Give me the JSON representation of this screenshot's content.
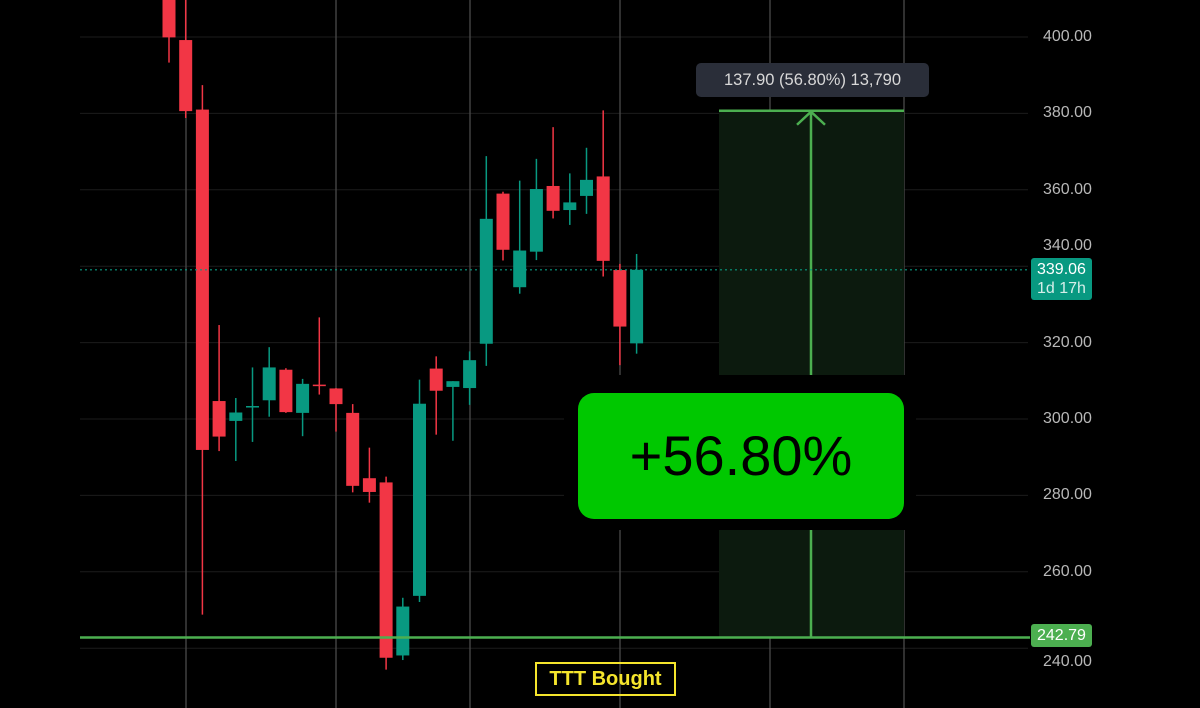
{
  "chart_data": {
    "type": "candlestick",
    "title": "",
    "xlabel": "",
    "ylabel": "",
    "ylim": [
      238,
      410
    ],
    "grid": true,
    "y_ticks": [
      "400.00",
      "380.00",
      "360.00",
      "340.00",
      "320.00",
      "300.00",
      "280.00",
      "260.00",
      "240.00"
    ],
    "y_tick_values": [
      400,
      380,
      360,
      340,
      320,
      300,
      280,
      260,
      240
    ],
    "up_color": "#089981",
    "down_color": "#f23645",
    "candles": [
      {
        "o": 412,
        "h": 418,
        "l": 393.3,
        "c": 399.9
      },
      {
        "o": 399.2,
        "h": 410,
        "l": 378.8,
        "c": 380.6
      },
      {
        "o": 381,
        "h": 387.4,
        "l": 248.8,
        "c": 291.9
      },
      {
        "o": 304.7,
        "h": 324.6,
        "l": 291.6,
        "c": 295.4
      },
      {
        "o": 299.5,
        "h": 305.5,
        "l": 289,
        "c": 301.7
      },
      {
        "o": 303,
        "h": 313.5,
        "l": 294,
        "c": 303.4
      },
      {
        "o": 304.9,
        "h": 318.8,
        "l": 300.6,
        "c": 313.5
      },
      {
        "o": 312.9,
        "h": 313.3,
        "l": 301.6,
        "c": 301.8
      },
      {
        "o": 301.6,
        "h": 310.5,
        "l": 295.5,
        "c": 309.2
      },
      {
        "o": 309,
        "h": 326.6,
        "l": 306.4,
        "c": 308.6
      },
      {
        "o": 308,
        "h": 308.1,
        "l": 296.7,
        "c": 303.9
      },
      {
        "o": 301.6,
        "h": 303.9,
        "l": 280.8,
        "c": 282.5
      },
      {
        "o": 284.5,
        "h": 292.5,
        "l": 278.1,
        "c": 280.9
      },
      {
        "o": 283.4,
        "h": 284.9,
        "l": 234.4,
        "c": 237.5
      },
      {
        "o": 238.1,
        "h": 253.2,
        "l": 236.9,
        "c": 250.9
      },
      {
        "o": 253.7,
        "h": 310.3,
        "l": 252.1,
        "c": 304
      },
      {
        "o": 313.2,
        "h": 316.4,
        "l": 295.9,
        "c": 307.4
      },
      {
        "o": 308.4,
        "h": 309.9,
        "l": 294.3,
        "c": 309.9
      },
      {
        "o": 308.1,
        "h": 317.7,
        "l": 303.7,
        "c": 315.4
      },
      {
        "o": 319.7,
        "h": 368.8,
        "l": 313.9,
        "c": 352.4
      },
      {
        "o": 359,
        "h": 359.5,
        "l": 341.5,
        "c": 344.3
      },
      {
        "o": 334.5,
        "h": 362.4,
        "l": 332.8,
        "c": 344.1
      },
      {
        "o": 343.8,
        "h": 368.1,
        "l": 341.6,
        "c": 360.2
      },
      {
        "o": 361,
        "h": 376.4,
        "l": 352.5,
        "c": 354.5
      },
      {
        "o": 354.7,
        "h": 364.3,
        "l": 350.8,
        "c": 356.7
      },
      {
        "o": 358.4,
        "h": 371,
        "l": 353.7,
        "c": 362.6
      },
      {
        "o": 363.5,
        "h": 380.8,
        "l": 337.3,
        "c": 341.4
      },
      {
        "o": 339,
        "h": 340.6,
        "l": 314.1,
        "c": 324.2
      },
      {
        "o": 319.8,
        "h": 343.2,
        "l": 317.1,
        "c": 339.06
      }
    ],
    "current_price": {
      "value": 339.06,
      "label": "339.06",
      "countdown": "1d 17h",
      "color": "#089981"
    },
    "entry_line": {
      "value": 242.79,
      "label": "242.79",
      "color": "#4caf50"
    },
    "measure": {
      "from": 242.79,
      "to": 380.69,
      "tooltip": "137.90 (56.80%) 13,790",
      "percent_label": "+56.80%",
      "fill_color": "#0c1a0e",
      "line_color": "#4caf50",
      "label_color": "#00c800"
    },
    "annotation": {
      "text": "TTT Bought",
      "color": "#f5e52c"
    }
  }
}
